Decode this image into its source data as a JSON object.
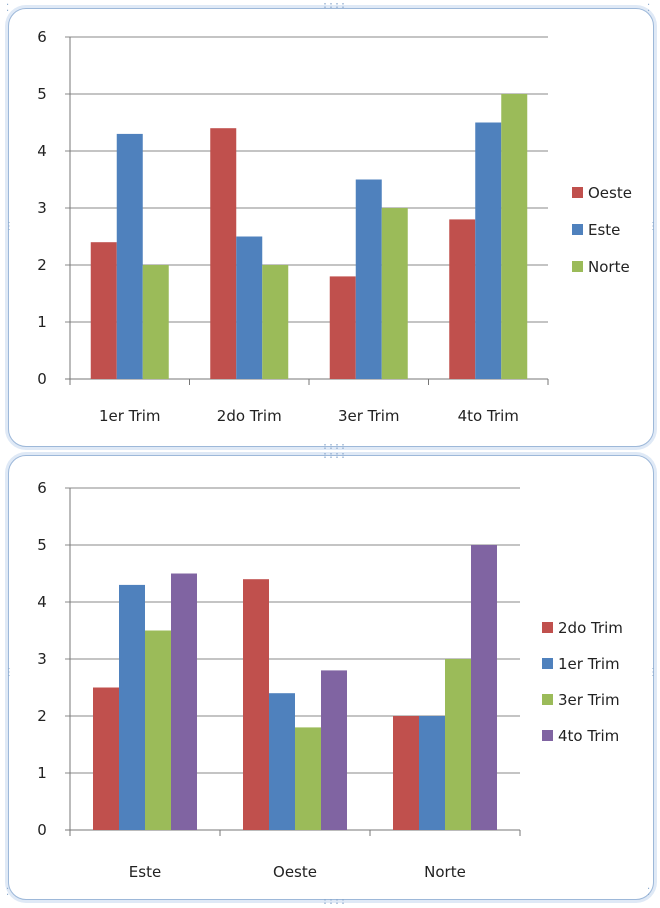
{
  "chart_data": [
    {
      "type": "bar",
      "categories": [
        "1er Trim",
        "2do Trim",
        "3er Trim",
        "4to Trim"
      ],
      "series": [
        {
          "name": "Oeste",
          "color": "#c0504d",
          "values": [
            2.4,
            4.4,
            1.8,
            2.8
          ]
        },
        {
          "name": "Este",
          "color": "#4f81bd",
          "values": [
            4.3,
            2.5,
            3.5,
            4.5
          ]
        },
        {
          "name": "Norte",
          "color": "#9bbb59",
          "values": [
            2.0,
            2.0,
            3.0,
            5.0
          ]
        }
      ],
      "yticks": [
        "0",
        "1",
        "2",
        "3",
        "4",
        "5",
        "6"
      ],
      "ylim": [
        0,
        6
      ],
      "grid": true,
      "legend": "right"
    },
    {
      "type": "bar",
      "categories": [
        "Este",
        "Oeste",
        "Norte"
      ],
      "series": [
        {
          "name": "2do Trim",
          "color": "#c0504d",
          "values": [
            2.5,
            4.4,
            2.0
          ]
        },
        {
          "name": "1er Trim",
          "color": "#4f81bd",
          "values": [
            4.3,
            2.4,
            2.0
          ]
        },
        {
          "name": "3er Trim",
          "color": "#9bbb59",
          "values": [
            3.5,
            1.8,
            3.0
          ]
        },
        {
          "name": "4to Trim",
          "color": "#8064a2",
          "values": [
            4.5,
            2.8,
            5.0
          ]
        }
      ],
      "yticks": [
        "0",
        "1",
        "2",
        "3",
        "4",
        "5",
        "6"
      ],
      "ylim": [
        0,
        6
      ],
      "grid": true,
      "legend": "right"
    }
  ]
}
